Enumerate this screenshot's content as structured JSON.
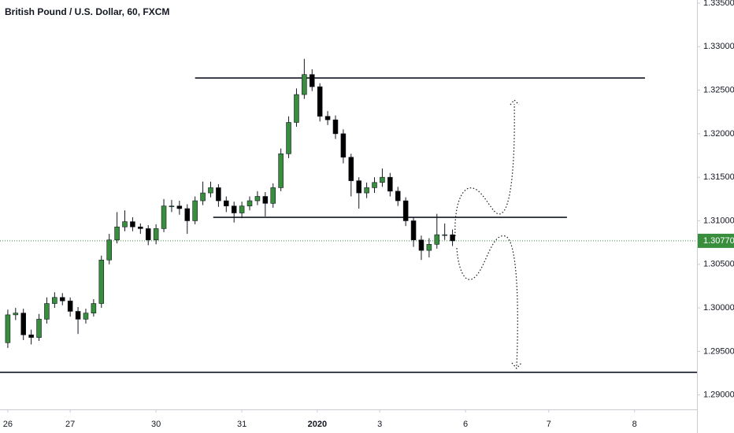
{
  "chart_data": {
    "type": "candlestick",
    "title": "British Pound / U.S. Dollar, 60, FXCM",
    "x": [
      0,
      3,
      6,
      9,
      12,
      15,
      18,
      21,
      24,
      27,
      30,
      33,
      36,
      39,
      42,
      45,
      48,
      51,
      54,
      57,
      60,
      63,
      66,
      69,
      72,
      75,
      78,
      81,
      84,
      87,
      90,
      93,
      96,
      99,
      102,
      105,
      108,
      111,
      114,
      117,
      120,
      123,
      126,
      129,
      132,
      135,
      138,
      141,
      144,
      147,
      150,
      153,
      156,
      159,
      162,
      165,
      168,
      171
    ],
    "open": [
      1.296,
      1.2992,
      1.2994,
      1.2969,
      1.2966,
      1.2987,
      1.3005,
      1.3012,
      1.3008,
      1.2996,
      1.2987,
      1.2994,
      1.3005,
      1.3055,
      1.3078,
      1.3093,
      1.3099,
      1.3093,
      1.3091,
      1.3078,
      1.3091,
      1.3117,
      1.3117,
      1.3114,
      1.31,
      1.3123,
      1.3132,
      1.3138,
      1.3123,
      1.3117,
      1.3109,
      1.3117,
      1.3123,
      1.3128,
      1.312,
      1.3138,
      1.3177,
      1.3213,
      1.3245,
      1.3268,
      1.3254,
      1.322,
      1.3216,
      1.32,
      1.3173,
      1.3146,
      1.3132,
      1.3138,
      1.3144,
      1.315,
      1.3134,
      1.3123,
      1.31,
      1.3078,
      1.3066,
      1.3073,
      1.3084,
      1.3084
    ],
    "high": [
      1.2998,
      1.3,
      1.2999,
      1.2975,
      1.2993,
      1.3012,
      1.3018,
      1.3017,
      1.3012,
      1.3001,
      1.2999,
      1.301,
      1.306,
      1.3085,
      1.311,
      1.3112,
      1.3104,
      1.3097,
      1.3095,
      1.3096,
      1.3125,
      1.3124,
      1.3123,
      1.3119,
      1.3128,
      1.3145,
      1.3145,
      1.3142,
      1.3128,
      1.3122,
      1.3122,
      1.3128,
      1.3134,
      1.3133,
      1.3143,
      1.3183,
      1.322,
      1.3252,
      1.3286,
      1.3274,
      1.3258,
      1.3226,
      1.3221,
      1.3205,
      1.3177,
      1.315,
      1.3144,
      1.315,
      1.316,
      1.3155,
      1.3139,
      1.3127,
      1.3104,
      1.3083,
      1.308,
      1.3108,
      1.3097,
      1.309
    ],
    "low": [
      1.2954,
      1.2986,
      1.2963,
      1.2958,
      1.2962,
      1.2982,
      1.3,
      1.3003,
      1.299,
      1.297,
      1.2982,
      1.299,
      1.3,
      1.305,
      1.3074,
      1.3088,
      1.3088,
      1.3085,
      1.3072,
      1.3073,
      1.3087,
      1.311,
      1.3107,
      1.3085,
      1.3096,
      1.3118,
      1.3127,
      1.3116,
      1.311,
      1.3098,
      1.3103,
      1.3112,
      1.3118,
      1.3105,
      1.3115,
      1.3134,
      1.3172,
      1.3208,
      1.324,
      1.3249,
      1.3214,
      1.321,
      1.3194,
      1.3166,
      1.3128,
      1.3114,
      1.3126,
      1.3132,
      1.3139,
      1.3128,
      1.3117,
      1.3094,
      1.307,
      1.3055,
      1.3058,
      1.3068,
      1.3078,
      1.3071
    ],
    "close": [
      1.2992,
      1.2994,
      1.2969,
      1.2966,
      1.2987,
      1.3005,
      1.3012,
      1.3008,
      1.2996,
      1.2987,
      1.2994,
      1.3005,
      1.3055,
      1.3078,
      1.3093,
      1.3099,
      1.3093,
      1.3091,
      1.3078,
      1.3091,
      1.3117,
      1.3117,
      1.3114,
      1.31,
      1.3123,
      1.3132,
      1.3138,
      1.3123,
      1.3117,
      1.3109,
      1.3117,
      1.3123,
      1.3128,
      1.312,
      1.3138,
      1.3177,
      1.3213,
      1.3245,
      1.3268,
      1.3254,
      1.322,
      1.3216,
      1.32,
      1.3173,
      1.3146,
      1.3132,
      1.3138,
      1.3144,
      1.315,
      1.3134,
      1.3123,
      1.31,
      1.3078,
      1.3066,
      1.3073,
      1.3084,
      1.3084,
      1.3077
    ],
    "up_color": "#388e3c",
    "down_color": "#000000",
    "xlim": [
      -3,
      265
    ],
    "xticks": [
      {
        "value": 0,
        "label": "26"
      },
      {
        "value": 24,
        "label": "27"
      },
      {
        "value": 57,
        "label": "30"
      },
      {
        "value": 90,
        "label": "31"
      },
      {
        "value": 119,
        "label": "2020"
      },
      {
        "value": 143,
        "label": "3"
      },
      {
        "value": 176,
        "label": "6"
      },
      {
        "value": 208,
        "label": "7"
      },
      {
        "value": 241,
        "label": "8"
      }
    ],
    "ylim": [
      1.28834,
      1.33536
    ],
    "yticks": [
      {
        "value": 1.29,
        "label": "1.29000"
      },
      {
        "value": 1.295,
        "label": "1.29500"
      },
      {
        "value": 1.3,
        "label": "1.30000"
      },
      {
        "value": 1.305,
        "label": "1.30500"
      },
      {
        "value": 1.31,
        "label": "1.31000"
      },
      {
        "value": 1.315,
        "label": "1.31500"
      },
      {
        "value": 1.32,
        "label": "1.32000"
      },
      {
        "value": 1.325,
        "label": "1.32500"
      },
      {
        "value": 1.33,
        "label": "1.33000"
      },
      {
        "value": 1.335,
        "label": "1.33500"
      }
    ],
    "levels": [
      {
        "value": 1.3264,
        "from": 72,
        "to": 245
      },
      {
        "value": 1.3104,
        "from": 79,
        "to": 215
      },
      {
        "value": 1.2926,
        "from": -3,
        "to": 265
      }
    ],
    "last_price": {
      "value": 1.3077,
      "label": "1.30770"
    }
  }
}
